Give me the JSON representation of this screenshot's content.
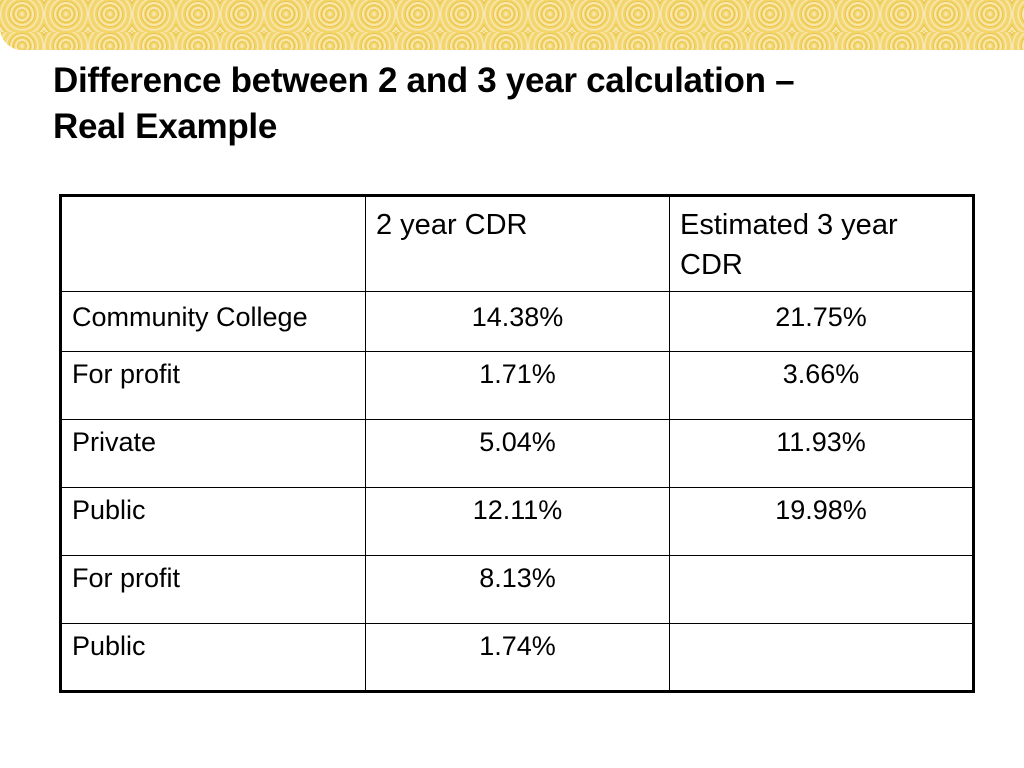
{
  "slide": {
    "title_line1": "Difference between 2 and 3 year calculation –",
    "title_line2": "Real Example"
  },
  "table": {
    "headers": [
      "",
      "2 year CDR",
      "Estimated 3 year CDR"
    ],
    "rows": [
      {
        "label": "Community College",
        "two_year": "14.38%",
        "three_year": "21.75%"
      },
      {
        "label": "For profit",
        "two_year": "1.71%",
        "three_year": "3.66%"
      },
      {
        "label": "Private",
        "two_year": "5.04%",
        "three_year": "11.93%"
      },
      {
        "label": "Public",
        "two_year": "12.11%",
        "three_year": "19.98%"
      },
      {
        "label": "For profit",
        "two_year": "8.13%",
        "three_year": ""
      },
      {
        "label": "Public",
        "two_year": "1.74%",
        "three_year": ""
      }
    ]
  },
  "colors": {
    "banner": "#f4d56a",
    "text": "#000000",
    "border": "#000000"
  }
}
